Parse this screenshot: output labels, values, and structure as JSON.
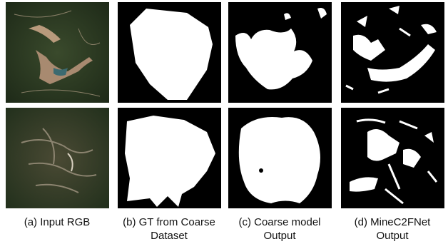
{
  "captions": [
    [
      "(a) Input RGB"
    ],
    [
      "(b) GT from Coarse",
      "Dataset"
    ],
    [
      "(c) Coarse model",
      "Output"
    ],
    [
      "(d) MineC2FNet",
      "Output"
    ]
  ]
}
